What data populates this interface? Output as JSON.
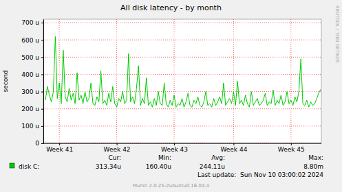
{
  "chart_data": {
    "type": "line",
    "title": "All disk latency - by month",
    "y_label": "second",
    "categories": [
      null,
      null,
      null,
      null,
      null,
      null,
      null,
      "Week 41",
      null,
      null,
      null,
      null,
      null,
      null,
      null,
      null,
      null,
      null,
      null,
      null,
      null,
      null,
      null,
      null,
      null,
      null,
      null,
      null,
      null,
      null,
      null,
      null,
      null,
      null,
      null,
      null,
      "Week 42",
      null,
      null,
      null,
      null,
      null,
      null,
      null,
      null,
      null,
      null,
      null,
      null,
      null,
      null,
      null,
      null,
      null,
      null,
      null,
      null,
      null,
      null,
      null,
      null,
      null,
      null,
      null,
      null,
      "Week 43",
      null,
      null,
      null,
      null,
      null,
      null,
      null,
      null,
      null,
      null,
      null,
      null,
      null,
      null,
      null,
      null,
      null,
      null,
      null,
      null,
      null,
      null,
      null,
      null,
      null,
      null,
      null,
      null,
      null,
      "Week 44",
      null,
      null,
      null,
      null,
      null,
      null,
      null,
      null,
      null,
      null,
      null,
      null,
      null,
      null,
      null,
      null,
      null,
      null,
      null,
      null,
      null,
      null,
      null,
      null,
      null,
      null,
      null,
      null,
      "Week 45",
      null,
      null,
      null,
      null,
      null,
      null,
      null,
      null,
      null,
      null,
      null,
      null,
      null,
      null,
      null
    ],
    "series": [
      {
        "name": "disk C:",
        "color": "#00cc00",
        "values": [
          0.00025,
          0.00033,
          0.00028,
          0.00024,
          0.0003,
          0.00062,
          0.00026,
          0.00035,
          0.00023,
          0.00054,
          0.00027,
          0.00024,
          0.00032,
          0.00025,
          0.00029,
          0.00023,
          0.00041,
          0.00025,
          0.00028,
          0.00023,
          0.0003,
          0.00024,
          0.00026,
          0.00035,
          0.00023,
          0.00022,
          0.00027,
          0.00024,
          0.00042,
          0.00023,
          0.00025,
          0.00022,
          0.00029,
          0.00024,
          0.00033,
          0.00023,
          0.00021,
          0.00026,
          0.00024,
          0.0003,
          0.00023,
          0.00025,
          0.00052,
          0.00024,
          0.00027,
          0.00023,
          0.00032,
          0.00045,
          0.00022,
          0.00026,
          0.00023,
          0.00038,
          0.00022,
          0.00024,
          0.00021,
          0.00026,
          0.00022,
          0.0003,
          0.00023,
          0.00022,
          0.00035,
          0.00023,
          0.00021,
          0.00025,
          0.00022,
          0.00028,
          0.00021,
          0.00023,
          0.00022,
          0.00026,
          0.00021,
          0.00024,
          0.00029,
          0.00022,
          0.00021,
          0.00025,
          0.00023,
          0.00027,
          0.00022,
          0.00021,
          0.00024,
          0.0003,
          0.00022,
          0.00023,
          0.00021,
          0.00026,
          0.00022,
          0.00024,
          0.00027,
          0.00023,
          0.00035,
          0.00022,
          0.00024,
          0.00026,
          0.00023,
          0.0003,
          0.00022,
          0.00036,
          0.00023,
          0.00025,
          0.00022,
          0.00028,
          0.00023,
          0.00021,
          0.0003,
          0.00022,
          0.00024,
          0.00026,
          0.00022,
          0.00023,
          0.00025,
          0.00029,
          0.00022,
          0.00024,
          0.00023,
          0.00031,
          0.00022,
          0.00025,
          0.00023,
          0.00028,
          0.00022,
          0.00024,
          0.0003,
          0.00023,
          0.00025,
          0.00022,
          0.00027,
          0.00024,
          0.0003,
          0.00049,
          0.00023,
          0.00022,
          0.00025,
          0.00021,
          0.00024,
          0.00022,
          0.00023,
          0.00026,
          0.00029,
          0.00031334
        ],
        "summary": [
          0.00031334,
          0.0001604,
          0.00024411,
          0.0088
        ],
        "summary_labels": [
          "313.34u",
          "160.40u",
          "244.11u",
          "8.80m"
        ]
      }
    ],
    "summary_headers": [
      "Cur:",
      "Min:",
      "Avg:",
      "Max:"
    ],
    "ylim": [
      0,
      0.00072
    ],
    "yticks": [
      0,
      {
        "value": 0.0001,
        "label": "100 u"
      },
      {
        "value": 0.0002,
        "label": "200 u"
      },
      {
        "value": 0.0003,
        "label": "300 u"
      },
      {
        "value": 0.0004,
        "label": "400 u"
      },
      {
        "value": 0.0005,
        "label": "500 u"
      },
      {
        "value": 0.0006,
        "label": "600 u"
      },
      {
        "value": 0.0007,
        "label": "700 u"
      }
    ],
    "grid": true,
    "legend": "bottom",
    "annotations": {
      "last_update": "Last update:  Sun Nov 10 03:00:02 2024",
      "footer": "Munin 2.0.25-2ubuntu0.16.04.4",
      "watermark": "RRDTOOL / TOBI OETIKER"
    }
  }
}
